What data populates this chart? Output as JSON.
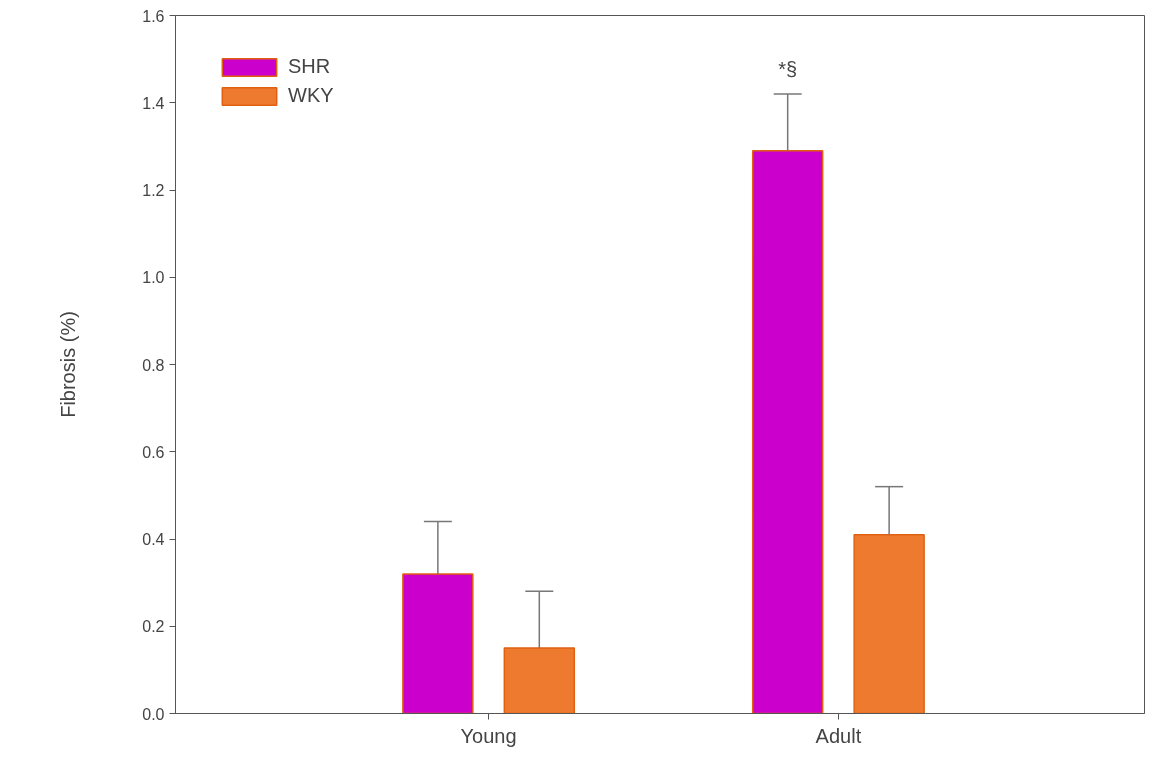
{
  "chart_data": {
    "type": "bar",
    "ylabel": "Fibrosis (%)",
    "categories": [
      "Young",
      "Adult"
    ],
    "series": [
      {
        "name": "SHR",
        "color": "#cc00cc",
        "values": [
          0.32,
          1.29
        ],
        "errors": [
          [
            0.32,
            0.44
          ],
          [
            1.29,
            1.42
          ]
        ]
      },
      {
        "name": "WKY",
        "color": "#ee7a30",
        "values": [
          0.15,
          0.41
        ],
        "errors": [
          [
            0.15,
            0.28
          ],
          [
            0.41,
            0.52
          ]
        ]
      }
    ],
    "ylim": [
      0,
      1.6
    ],
    "yticks": [
      {
        "value": 0,
        "label": "0.0"
      },
      {
        "value": 0.2,
        "label": "0.2"
      },
      {
        "value": 0.4,
        "label": "0.4"
      },
      {
        "value": 0.6,
        "label": "0.6"
      },
      {
        "value": 0.8,
        "label": "0.8"
      },
      {
        "value": 1,
        "label": "1.0"
      },
      {
        "value": 1.2,
        "label": "1.2"
      },
      {
        "value": 1.4,
        "label": "1.4"
      },
      {
        "value": 1.6,
        "label": "1.6"
      }
    ],
    "annotations": [
      "*§"
    ],
    "grid": false,
    "legend": "top left"
  }
}
